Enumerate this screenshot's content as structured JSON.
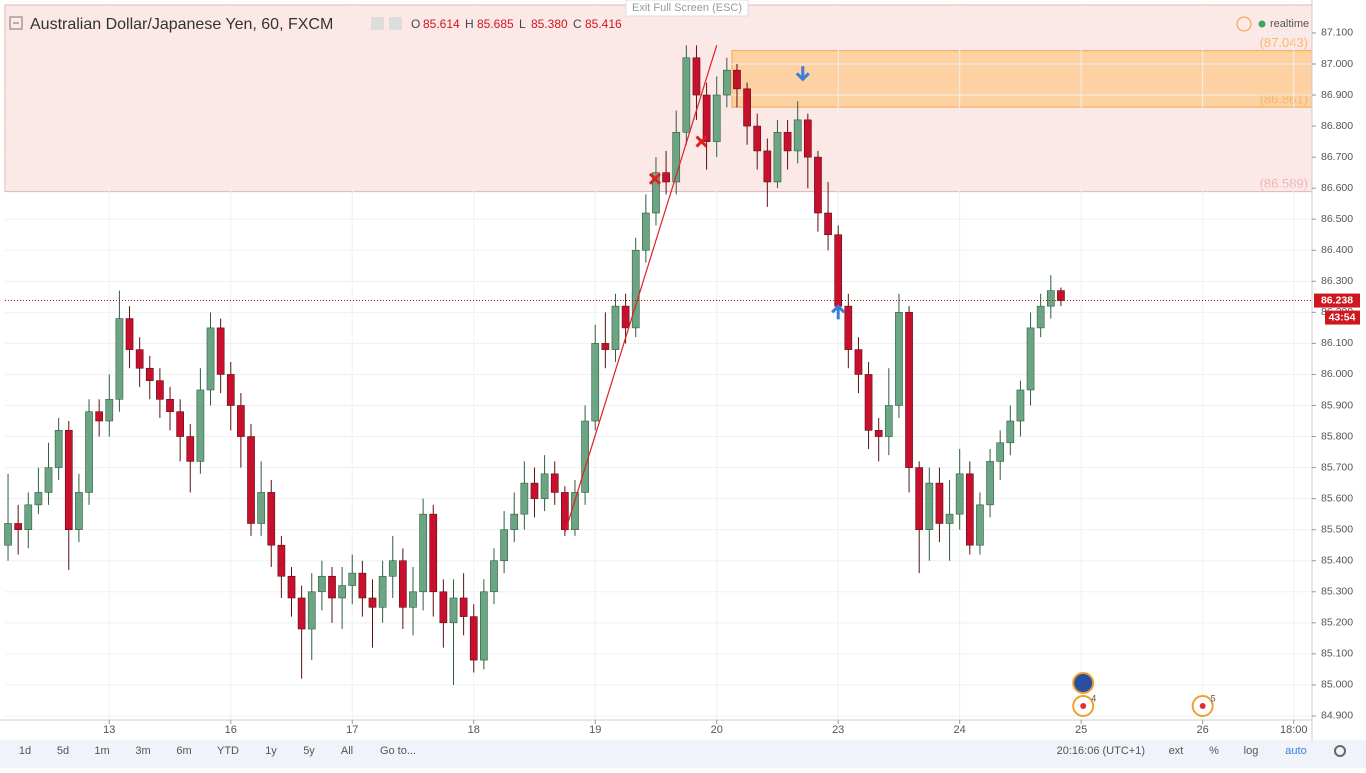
{
  "header": {
    "symbol": "Australian Dollar/Japanese Yen, 60, FXCM",
    "ohlc": [
      [
        "O",
        "85.614"
      ],
      [
        "H",
        "85.685"
      ],
      [
        "L",
        "85.380"
      ],
      [
        "C",
        "85.416"
      ]
    ],
    "exit_fullscreen": "Exit Full Screen (ESC)",
    "status": "realtime"
  },
  "toolbar": {
    "ranges": [
      "1d",
      "5d",
      "1m",
      "3m",
      "6m",
      "YTD",
      "1y",
      "5y",
      "All",
      "Go to..."
    ],
    "clock": "20:16:06 (UTC+1)",
    "options": [
      "ext",
      "%",
      "log",
      "auto"
    ]
  },
  "chart_data": {
    "type": "candlestick",
    "up_color": "#6ba583",
    "down_color": "#c8102e",
    "grid": true,
    "x": [
      0,
      2,
      4,
      6,
      8,
      10,
      12,
      14,
      16,
      18,
      20,
      22,
      24,
      26,
      28,
      30,
      32,
      34,
      36,
      38,
      40,
      42,
      44,
      46,
      48,
      50,
      52,
      54,
      56,
      58,
      60,
      62,
      64,
      66,
      68,
      70,
      72,
      74,
      76,
      78,
      80,
      82,
      84,
      86,
      88,
      90,
      92,
      94,
      96,
      98,
      100,
      102,
      104,
      106,
      108,
      110,
      112,
      114,
      116,
      118,
      120,
      122,
      124,
      126,
      128,
      130,
      132,
      134,
      136,
      138,
      140,
      142,
      144,
      146,
      148,
      150,
      152,
      154,
      156,
      158,
      160,
      162,
      164,
      166,
      168,
      170,
      172,
      174,
      176,
      178,
      180,
      182,
      184,
      186,
      188,
      190,
      192,
      194,
      196,
      198,
      200,
      202,
      204,
      206,
      208
    ],
    "open": [
      85.45,
      85.52,
      85.5,
      85.58,
      85.62,
      85.7,
      85.82,
      85.5,
      85.62,
      85.88,
      85.85,
      85.92,
      86.18,
      86.08,
      86.02,
      85.98,
      85.92,
      85.88,
      85.8,
      85.72,
      85.95,
      86.15,
      86.0,
      85.9,
      85.8,
      85.52,
      85.62,
      85.45,
      85.35,
      85.28,
      85.18,
      85.3,
      85.35,
      85.28,
      85.32,
      85.36,
      85.28,
      85.25,
      85.35,
      85.4,
      85.25,
      85.3,
      85.55,
      85.3,
      85.2,
      85.28,
      85.22,
      85.08,
      85.3,
      85.4,
      85.5,
      85.55,
      85.65,
      85.6,
      85.68,
      85.62,
      85.5,
      85.62,
      85.85,
      86.1,
      86.08,
      86.22,
      86.15,
      86.4,
      86.52,
      86.65,
      86.62,
      86.78,
      87.02,
      86.9,
      86.75,
      86.9,
      86.98,
      86.92,
      86.8,
      86.72,
      86.62,
      86.78,
      86.72,
      86.82,
      86.7,
      86.52,
      86.45,
      86.22,
      86.08,
      86.0,
      85.82,
      85.8,
      85.9,
      86.2,
      85.7,
      85.5,
      85.65,
      85.52,
      85.55,
      85.68,
      85.45,
      85.58,
      85.72,
      85.78,
      85.85,
      85.95,
      86.15,
      86.22,
      86.27
    ],
    "high": [
      85.68,
      85.58,
      85.62,
      85.7,
      85.78,
      85.86,
      85.85,
      85.68,
      85.92,
      85.92,
      86.0,
      86.27,
      86.22,
      86.12,
      86.06,
      86.02,
      85.96,
      85.92,
      85.84,
      86.02,
      86.2,
      86.18,
      86.04,
      85.94,
      85.84,
      85.72,
      85.66,
      85.48,
      85.38,
      85.32,
      85.36,
      85.4,
      85.38,
      85.38,
      85.42,
      85.4,
      85.34,
      85.4,
      85.48,
      85.44,
      85.38,
      85.6,
      85.58,
      85.34,
      85.34,
      85.36,
      85.26,
      85.34,
      85.44,
      85.56,
      85.62,
      85.72,
      85.7,
      85.74,
      85.72,
      85.64,
      85.66,
      85.9,
      86.16,
      86.2,
      86.26,
      86.26,
      86.44,
      86.58,
      86.7,
      86.72,
      86.85,
      87.06,
      87.06,
      86.94,
      86.96,
      87.02,
      87.0,
      86.94,
      86.84,
      86.76,
      86.82,
      86.82,
      86.88,
      86.84,
      86.72,
      86.62,
      86.48,
      86.26,
      86.12,
      86.04,
      85.86,
      86.02,
      86.26,
      86.22,
      85.72,
      85.7,
      85.7,
      85.66,
      85.76,
      85.72,
      85.62,
      85.76,
      85.82,
      85.9,
      85.98,
      86.2,
      86.26,
      86.32,
      86.28
    ],
    "low": [
      85.4,
      85.42,
      85.44,
      85.55,
      85.58,
      85.66,
      85.37,
      85.46,
      85.58,
      85.8,
      85.8,
      85.88,
      86.02,
      85.96,
      85.92,
      85.86,
      85.82,
      85.72,
      85.62,
      85.68,
      85.9,
      85.94,
      85.82,
      85.7,
      85.48,
      85.48,
      85.38,
      85.28,
      85.22,
      85.02,
      85.08,
      85.24,
      85.2,
      85.18,
      85.26,
      85.22,
      85.12,
      85.2,
      85.28,
      85.18,
      85.16,
      85.24,
      85.22,
      85.12,
      85.0,
      85.16,
      85.04,
      85.05,
      85.26,
      85.36,
      85.46,
      85.5,
      85.54,
      85.56,
      85.58,
      85.48,
      85.48,
      85.58,
      85.82,
      86.02,
      86.04,
      86.1,
      86.12,
      86.36,
      86.48,
      86.58,
      86.58,
      86.74,
      86.82,
      86.66,
      86.7,
      86.86,
      86.86,
      86.74,
      86.66,
      86.54,
      86.6,
      86.66,
      86.68,
      86.6,
      86.46,
      86.4,
      86.18,
      86.02,
      85.94,
      85.76,
      85.72,
      85.74,
      85.86,
      85.62,
      85.36,
      85.4,
      85.46,
      85.4,
      85.5,
      85.42,
      85.42,
      85.54,
      85.66,
      85.74,
      85.8,
      85.9,
      86.12,
      86.18,
      86.22
    ],
    "close": [
      85.52,
      85.5,
      85.58,
      85.62,
      85.7,
      85.82,
      85.5,
      85.62,
      85.88,
      85.85,
      85.92,
      86.18,
      86.08,
      86.02,
      85.98,
      85.92,
      85.88,
      85.8,
      85.72,
      85.95,
      86.15,
      86.0,
      85.9,
      85.8,
      85.52,
      85.62,
      85.45,
      85.35,
      85.28,
      85.18,
      85.3,
      85.35,
      85.28,
      85.32,
      85.36,
      85.28,
      85.25,
      85.35,
      85.4,
      85.25,
      85.3,
      85.55,
      85.3,
      85.2,
      85.28,
      85.22,
      85.08,
      85.3,
      85.4,
      85.5,
      85.55,
      85.65,
      85.6,
      85.68,
      85.62,
      85.5,
      85.62,
      85.85,
      86.1,
      86.08,
      86.22,
      86.15,
      86.4,
      86.52,
      86.65,
      86.62,
      86.78,
      87.02,
      86.9,
      86.75,
      86.9,
      86.98,
      86.92,
      86.8,
      86.72,
      86.62,
      86.78,
      86.72,
      86.82,
      86.7,
      86.52,
      86.45,
      86.22,
      86.08,
      86.0,
      85.82,
      85.8,
      85.9,
      86.2,
      85.7,
      85.5,
      85.65,
      85.52,
      85.55,
      85.68,
      85.45,
      85.58,
      85.72,
      85.78,
      85.85,
      85.95,
      86.15,
      86.22,
      86.27,
      86.238
    ],
    "xlim": [
      -0.6,
      257.6
    ],
    "ylim": [
      84.887,
      87.19
    ],
    "xticks": [
      {
        "value": 20,
        "label": "13"
      },
      {
        "value": 44,
        "label": "16"
      },
      {
        "value": 68,
        "label": "17"
      },
      {
        "value": 92,
        "label": "18"
      },
      {
        "value": 116,
        "label": "19"
      },
      {
        "value": 140,
        "label": "20"
      },
      {
        "value": 164,
        "label": "23"
      },
      {
        "value": 188,
        "label": "24"
      },
      {
        "value": 212,
        "label": "25"
      },
      {
        "value": 236,
        "label": "26"
      },
      {
        "value": 254,
        "label": "18:00"
      }
    ],
    "yticks": [
      {
        "value": 84.9,
        "label": "84.900"
      },
      {
        "value": 85.0,
        "label": "85.000"
      },
      {
        "value": 85.1,
        "label": "85.100"
      },
      {
        "value": 85.2,
        "label": "85.200"
      },
      {
        "value": 85.3,
        "label": "85.300"
      },
      {
        "value": 85.4,
        "label": "85.400"
      },
      {
        "value": 85.5,
        "label": "85.500"
      },
      {
        "value": 85.6,
        "label": "85.600"
      },
      {
        "value": 85.7,
        "label": "85.700"
      },
      {
        "value": 85.8,
        "label": "85.800"
      },
      {
        "value": 85.9,
        "label": "85.900"
      },
      {
        "value": 86.0,
        "label": "86.000"
      },
      {
        "value": 86.1,
        "label": "86.100"
      },
      {
        "value": 86.2,
        "label": "86.200"
      },
      {
        "value": 86.3,
        "label": "86.300"
      },
      {
        "value": 86.4,
        "label": "86.400"
      },
      {
        "value": 86.5,
        "label": "86.500"
      },
      {
        "value": 86.6,
        "label": "86.600"
      },
      {
        "value": 86.7,
        "label": "86.700"
      },
      {
        "value": 86.8,
        "label": "86.800"
      },
      {
        "value": 86.9,
        "label": "86.900"
      },
      {
        "value": 87.0,
        "label": "87.000"
      },
      {
        "value": 87.1,
        "label": "87.100"
      }
    ],
    "last_price": 86.238,
    "countdown": "43:54",
    "zones": [
      {
        "low": {
          "value": 86.589,
          "label": "(86.589)"
        },
        "start_x": -0.6,
        "color": "#fde8e8"
      },
      {
        "low": {
          "value": 86.861,
          "label": "(86.861)"
        },
        "high": {
          "value": 87.043,
          "label": "(87.043)"
        },
        "start_x": 143,
        "color": "#fcc98a"
      }
    ],
    "trend_line": {
      "x": [
        110,
        140
      ],
      "y": [
        85.49,
        87.06
      ],
      "color": "#e02020"
    },
    "markers": [
      {
        "x": 127.8,
        "y": 86.63,
        "kind": "cross",
        "color": "#e02020"
      },
      {
        "x": 137,
        "y": 86.75,
        "kind": "cross",
        "color": "#e02020"
      },
      {
        "x": 157,
        "y": 86.97,
        "kind": "arrow-down",
        "color": "#3b7ddd"
      },
      {
        "x": 164,
        "y": 86.2,
        "kind": "arrow-up",
        "color": "#3b7ddd"
      }
    ],
    "events": [
      {
        "x": 212.4,
        "label": "4"
      },
      {
        "x": 236,
        "label": "5"
      }
    ]
  }
}
